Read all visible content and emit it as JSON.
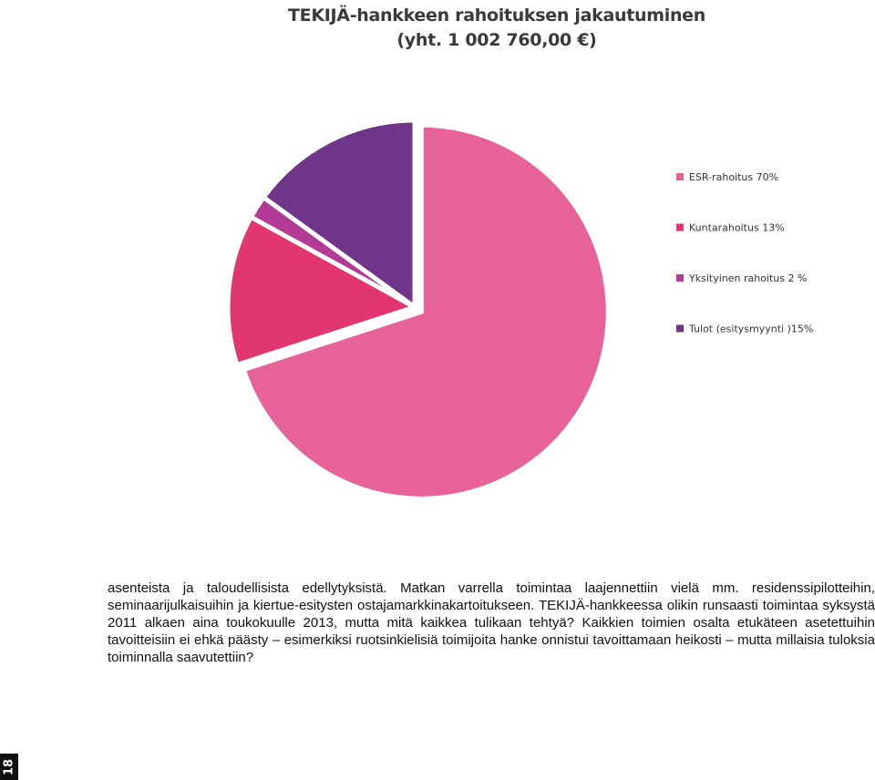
{
  "chart_data": {
    "type": "pie",
    "title": "TEKIJÄ-hankkeen rahoituksen jakautuminen",
    "subtitle": "(yht. 1 002 760,00 €)",
    "categories": [
      "ESR-rahoitus 70%",
      "Kuntarahoitus 13%",
      "Yksityinen rahoitus 2 %",
      "Tulot (esitysmyynti )15%"
    ],
    "values": [
      70,
      13,
      2,
      15
    ],
    "colors": [
      "#e8629a",
      "#e23670",
      "#b33a95",
      "#6e3589"
    ],
    "exploded": [
      0
    ],
    "legend_position": "right"
  },
  "body": {
    "paragraph": "asenteista ja taloudellisista edellytyksistä. Matkan varrella toimintaa laajennettiin vielä mm. residenssipilotteihin, seminaarijulkaisuihin ja kiertue-esitysten ostajamarkkinakartoitukseen. TEKIJÄ-hankkeessa olikin runsaasti toimintaa syksystä 2011 alkaen aina toukokuulle 2013, mutta mitä kaikkea tulikaan tehtyä? Kaikkien toimien osalta etukäteen asetettuihin tavoitteisiin ei ehkä päästy – esimerkiksi ruotsinkielisiä toimijoita hanke onnistui tavoittamaan heikosti – mutta millaisia tuloksia toiminnalla saavutettiin?"
  },
  "page": {
    "number": "18"
  }
}
